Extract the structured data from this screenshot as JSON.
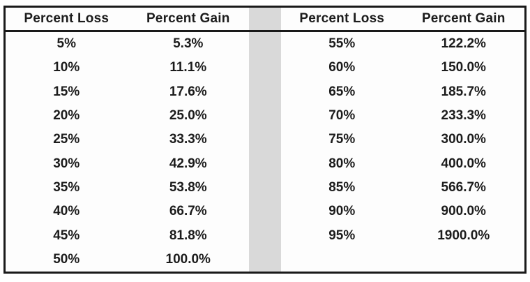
{
  "colors": {
    "border": "#1a1a1a",
    "divider_strip": "#d9d9d9",
    "background": "#fdfdfd",
    "text": "#1c1c1c"
  },
  "left_table": {
    "headers": [
      "Percent Loss",
      "Percent Gain"
    ],
    "rows": [
      [
        "5%",
        "5.3%"
      ],
      [
        "10%",
        "11.1%"
      ],
      [
        "15%",
        "17.6%"
      ],
      [
        "20%",
        "25.0%"
      ],
      [
        "25%",
        "33.3%"
      ],
      [
        "30%",
        "42.9%"
      ],
      [
        "35%",
        "53.8%"
      ],
      [
        "40%",
        "66.7%"
      ],
      [
        "45%",
        "81.8%"
      ],
      [
        "50%",
        "100.0%"
      ]
    ]
  },
  "right_table": {
    "headers": [
      "Percent Loss",
      "Percent Gain"
    ],
    "rows": [
      [
        "55%",
        "122.2%"
      ],
      [
        "60%",
        "150.0%"
      ],
      [
        "65%",
        "185.7%"
      ],
      [
        "70%",
        "233.3%"
      ],
      [
        "75%",
        "300.0%"
      ],
      [
        "80%",
        "400.0%"
      ],
      [
        "85%",
        "566.7%"
      ],
      [
        "90%",
        "900.0%"
      ],
      [
        "95%",
        "1900.0%"
      ]
    ]
  },
  "chart_data": {
    "type": "table",
    "title": "",
    "columns": [
      "Percent Loss",
      "Percent Gain"
    ],
    "rows": [
      [
        5,
        5.3
      ],
      [
        10,
        11.1
      ],
      [
        15,
        17.6
      ],
      [
        20,
        25.0
      ],
      [
        25,
        33.3
      ],
      [
        30,
        42.9
      ],
      [
        35,
        53.8
      ],
      [
        40,
        66.7
      ],
      [
        45,
        81.8
      ],
      [
        50,
        100.0
      ],
      [
        55,
        122.2
      ],
      [
        60,
        150.0
      ],
      [
        65,
        185.7
      ],
      [
        70,
        233.3
      ],
      [
        75,
        300.0
      ],
      [
        80,
        400.0
      ],
      [
        85,
        566.7
      ],
      [
        90,
        900.0
      ],
      [
        95,
        1900.0
      ]
    ],
    "units": "percent",
    "layout_hints": {
      "split_into_two_panels": true,
      "left_panel_rows": 10,
      "right_panel_rows": 9,
      "divider_strip_between_panels": true,
      "all_text_bold_centered": true
    }
  }
}
